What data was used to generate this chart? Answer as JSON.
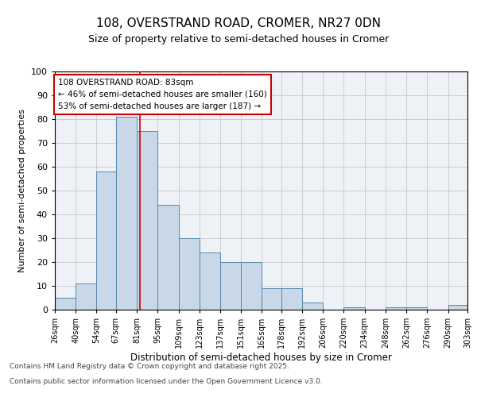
{
  "title": "108, OVERSTRAND ROAD, CROMER, NR27 0DN",
  "subtitle": "Size of property relative to semi-detached houses in Cromer",
  "xlabel": "Distribution of semi-detached houses by size in Cromer",
  "ylabel": "Number of semi-detached properties",
  "footer_line1": "Contains HM Land Registry data © Crown copyright and database right 2025.",
  "footer_line2": "Contains public sector information licensed under the Open Government Licence v3.0.",
  "annotation_line1": "108 OVERSTRAND ROAD: 83sqm",
  "annotation_line2": "← 46% of semi-detached houses are smaller (160)",
  "annotation_line3": "53% of semi-detached houses are larger (187) →",
  "property_size": 83,
  "bin_edges": [
    26,
    40,
    54,
    67,
    81,
    95,
    109,
    123,
    137,
    151,
    165,
    178,
    192,
    206,
    220,
    234,
    248,
    262,
    276,
    290,
    303
  ],
  "bar_heights": [
    5,
    11,
    58,
    81,
    75,
    44,
    30,
    24,
    20,
    20,
    9,
    9,
    3,
    0,
    1,
    0,
    1,
    1,
    0,
    2
  ],
  "bar_color": "#c8d8e8",
  "bar_edge_color": "#5588aa",
  "vline_color": "#cc0000",
  "grid_color": "#c8c8c8",
  "background_color": "#eef2f6",
  "annotation_box_color": "#ffffff",
  "annotation_box_edge": "#cc0000",
  "ylim": [
    0,
    100
  ],
  "yticks": [
    0,
    10,
    20,
    30,
    40,
    50,
    60,
    70,
    80,
    90,
    100
  ]
}
